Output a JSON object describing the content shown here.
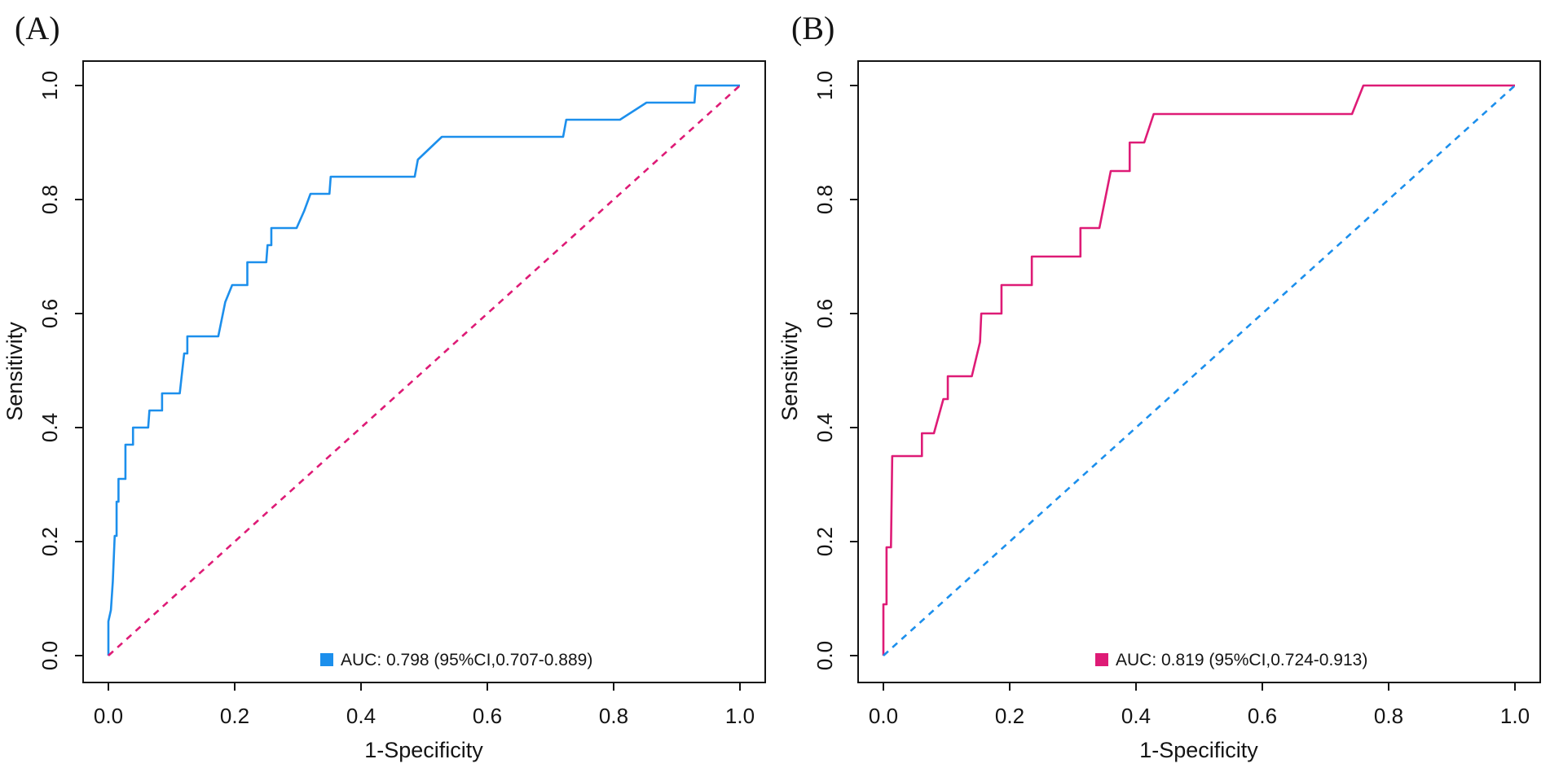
{
  "figure": {
    "background_color": "#ffffff",
    "description_colors": {
      "blue": "#1C8FEC",
      "pink": "#DE1B76"
    }
  },
  "chart_data": [
    {
      "type": "line",
      "panel_label": "(A)",
      "xlabel": "1-Specificity",
      "ylabel": "Sensitivity",
      "xlim": [
        0,
        1
      ],
      "ylim": [
        0,
        1
      ],
      "grid": false,
      "x_ticks": [
        0,
        0.2,
        0.4,
        0.6,
        0.8,
        1.0
      ],
      "y_ticks": [
        0,
        0.2,
        0.4,
        0.6,
        0.8,
        1.0
      ],
      "x_tick_labels": [
        "0.0",
        "0.2",
        "0.4",
        "0.6",
        "0.8",
        "1.0"
      ],
      "y_tick_labels": [
        "0.0",
        "0.2",
        "0.4",
        "0.6",
        "0.8",
        "1.0"
      ],
      "legend": {
        "position": "bottom-center-inside",
        "label": "AUC: 0.798 (95%CI,0.707-0.889)",
        "auc": 0.798,
        "ci_low": 0.707,
        "ci_high": 0.889,
        "marker_color": "#1C8FEC"
      },
      "series": [
        {
          "name": "roc-curve",
          "color": "#1C8FEC",
          "style": "solid",
          "points": [
            [
              0,
              0
            ],
            [
              0,
              0.06
            ],
            [
              0.004,
              0.08
            ],
            [
              0.007,
              0.13
            ],
            [
              0.01,
              0.21
            ],
            [
              0.013,
              0.21
            ],
            [
              0.013,
              0.27
            ],
            [
              0.016,
              0.27
            ],
            [
              0.016,
              0.31
            ],
            [
              0.027,
              0.31
            ],
            [
              0.027,
              0.37
            ],
            [
              0.039,
              0.37
            ],
            [
              0.039,
              0.4
            ],
            [
              0.063,
              0.4
            ],
            [
              0.065,
              0.43
            ],
            [
              0.085,
              0.43
            ],
            [
              0.085,
              0.46
            ],
            [
              0.113,
              0.46
            ],
            [
              0.12,
              0.53
            ],
            [
              0.125,
              0.53
            ],
            [
              0.125,
              0.56
            ],
            [
              0.174,
              0.56
            ],
            [
              0.185,
              0.62
            ],
            [
              0.196,
              0.65
            ],
            [
              0.22,
              0.65
            ],
            [
              0.22,
              0.69
            ],
            [
              0.25,
              0.69
            ],
            [
              0.252,
              0.72
            ],
            [
              0.258,
              0.72
            ],
            [
              0.258,
              0.75
            ],
            [
              0.298,
              0.75
            ],
            [
              0.31,
              0.78
            ],
            [
              0.32,
              0.81
            ],
            [
              0.35,
              0.81
            ],
            [
              0.352,
              0.84
            ],
            [
              0.485,
              0.84
            ],
            [
              0.49,
              0.87
            ],
            [
              0.528,
              0.91
            ],
            [
              0.72,
              0.91
            ],
            [
              0.725,
              0.94
            ],
            [
              0.81,
              0.94
            ],
            [
              0.852,
              0.97
            ],
            [
              0.928,
              0.97
            ],
            [
              0.93,
              1
            ],
            [
              1,
              1
            ]
          ]
        },
        {
          "name": "reference-diagonal",
          "color": "#DE1B76",
          "style": "dashed",
          "points": [
            [
              0,
              0
            ],
            [
              1,
              1
            ]
          ]
        }
      ]
    },
    {
      "type": "line",
      "panel_label": "(B)",
      "xlabel": "1-Specificity",
      "ylabel": "Sensitivity",
      "xlim": [
        0,
        1
      ],
      "ylim": [
        0,
        1
      ],
      "grid": false,
      "x_ticks": [
        0,
        0.2,
        0.4,
        0.6,
        0.8,
        1.0
      ],
      "y_ticks": [
        0,
        0.2,
        0.4,
        0.6,
        0.8,
        1.0
      ],
      "x_tick_labels": [
        "0.0",
        "0.2",
        "0.4",
        "0.6",
        "0.8",
        "1.0"
      ],
      "y_tick_labels": [
        "0.0",
        "0.2",
        "0.4",
        "0.6",
        "0.8",
        "1.0"
      ],
      "legend": {
        "position": "bottom-center-inside",
        "label": "AUC: 0.819 (95%CI,0.724-0.913)",
        "auc": 0.819,
        "ci_low": 0.724,
        "ci_high": 0.913,
        "marker_color": "#DE1B76"
      },
      "series": [
        {
          "name": "roc-curve",
          "color": "#DE1B76",
          "style": "solid",
          "points": [
            [
              0,
              0
            ],
            [
              0,
              0.09
            ],
            [
              0.005,
              0.09
            ],
            [
              0.005,
              0.19
            ],
            [
              0.012,
              0.19
            ],
            [
              0.014,
              0.35
            ],
            [
              0.061,
              0.35
            ],
            [
              0.061,
              0.39
            ],
            [
              0.08,
              0.39
            ],
            [
              0.095,
              0.45
            ],
            [
              0.102,
              0.45
            ],
            [
              0.102,
              0.49
            ],
            [
              0.14,
              0.49
            ],
            [
              0.153,
              0.55
            ],
            [
              0.155,
              0.6
            ],
            [
              0.187,
              0.6
            ],
            [
              0.187,
              0.65
            ],
            [
              0.235,
              0.65
            ],
            [
              0.235,
              0.7
            ],
            [
              0.312,
              0.7
            ],
            [
              0.312,
              0.75
            ],
            [
              0.342,
              0.75
            ],
            [
              0.36,
              0.85
            ],
            [
              0.39,
              0.85
            ],
            [
              0.39,
              0.9
            ],
            [
              0.413,
              0.9
            ],
            [
              0.428,
              0.95
            ],
            [
              0.742,
              0.95
            ],
            [
              0.76,
              1
            ],
            [
              1,
              1
            ]
          ]
        },
        {
          "name": "reference-diagonal",
          "color": "#1C8FEC",
          "style": "dashed",
          "points": [
            [
              0,
              0
            ],
            [
              1,
              1
            ]
          ]
        }
      ]
    }
  ]
}
